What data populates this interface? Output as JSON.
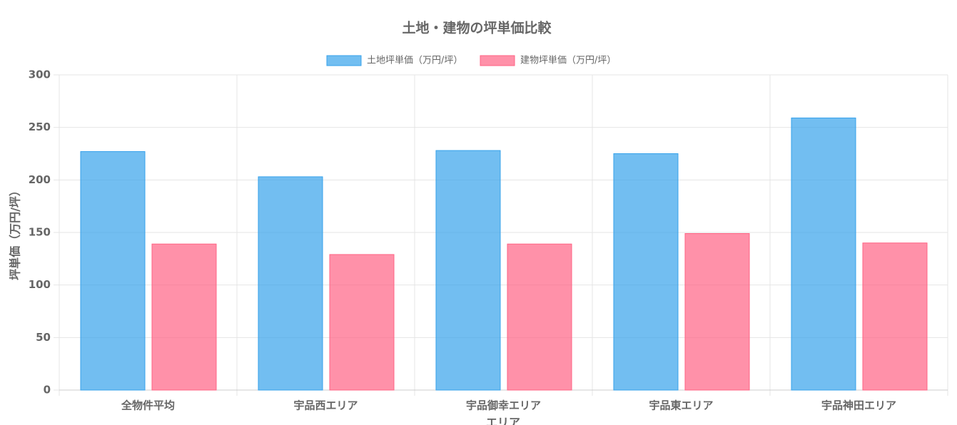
{
  "chart_data": {
    "type": "bar",
    "title": "土地・建物の坪単価比較",
    "categories": [
      "全物件平均",
      "宇品西エリア",
      "宇品御幸エリア",
      "宇品東エリア",
      "宇品神田エリア"
    ],
    "series": [
      {
        "name": "土地坪単価（万円/坪）",
        "color": "#36a2eb",
        "values": [
          227,
          203,
          228,
          225,
          259
        ]
      },
      {
        "name": "建物坪単価（万円/坪）",
        "color": "#ff6384",
        "values": [
          139,
          129,
          139,
          149,
          140
        ]
      }
    ],
    "x_label": "エリア",
    "y_label": "坪単価（万円/坪）",
    "ylim": [
      0,
      300
    ],
    "yticks": [
      0,
      50,
      100,
      150,
      200,
      250,
      300
    ],
    "grid": true,
    "legend": "top"
  }
}
